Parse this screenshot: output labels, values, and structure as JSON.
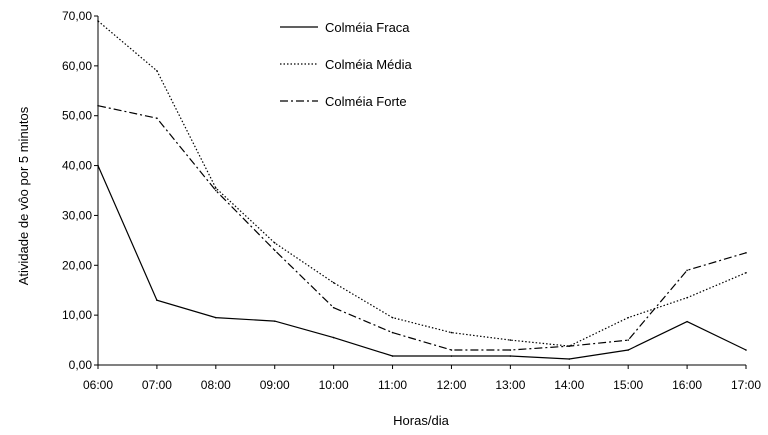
{
  "chart_data": {
    "type": "line",
    "title": "",
    "xlabel": "Horas/dia",
    "ylabel": "Atividade de vôo por 5 minutos",
    "ylim": [
      0,
      70
    ],
    "yticks": [
      "0,00",
      "10,00",
      "20,00",
      "30,00",
      "40,00",
      "50,00",
      "60,00",
      "70,00"
    ],
    "categories": [
      "06:00",
      "07:00",
      "08:00",
      "09:00",
      "10:00",
      "11:00",
      "12:00",
      "13:00",
      "14:00",
      "15:00",
      "16:00",
      "17:00"
    ],
    "grid": false,
    "legend_position": "top-center",
    "series": [
      {
        "name": "Colméia Fraca",
        "dash": "solid",
        "values": [
          40.0,
          13.0,
          9.5,
          8.8,
          5.5,
          1.8,
          1.8,
          1.8,
          1.2,
          3.0,
          8.7,
          3.0
        ]
      },
      {
        "name": "Colméia Média",
        "dash": "dotted",
        "values": [
          69.0,
          59.0,
          35.5,
          24.5,
          16.5,
          9.5,
          6.5,
          5.0,
          3.8,
          9.5,
          13.5,
          18.5
        ]
      },
      {
        "name": "Colméia Forte",
        "dash": "dashdot",
        "values": [
          52.0,
          49.5,
          35.0,
          23.0,
          11.5,
          6.5,
          3.0,
          3.0,
          3.8,
          5.0,
          19.0,
          22.5
        ]
      }
    ]
  }
}
